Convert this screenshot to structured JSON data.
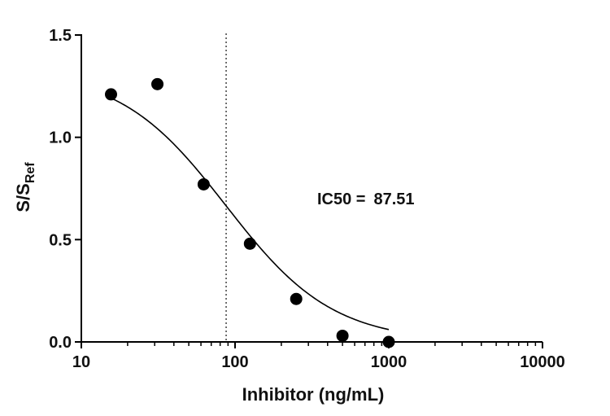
{
  "chart_data": {
    "type": "scatter",
    "xlabel": "Inhibitor (ng/mL)",
    "ylabel_main": "S/S",
    "ylabel_sub": "Ref",
    "x_scale": "log",
    "xlim": [
      10,
      10000
    ],
    "ylim": [
      0,
      1.5
    ],
    "x_ticks": [
      10,
      100,
      1000,
      10000
    ],
    "x_tick_labels": [
      "10",
      "100",
      "1000",
      "10000"
    ],
    "y_ticks": [
      0,
      0.5,
      1.0,
      1.5
    ],
    "y_tick_labels": [
      "0.0",
      "0.5",
      "1.0",
      "1.5"
    ],
    "grid": false,
    "series": [
      {
        "x": [
          15.6,
          31.25,
          62.5,
          125,
          250,
          500,
          1000
        ],
        "y": [
          1.21,
          1.26,
          0.77,
          0.48,
          0.21,
          0.03,
          0.0
        ]
      }
    ],
    "fit_curve": {
      "model": "4PL",
      "top": 1.33,
      "bottom": 0.0,
      "ic50": 87.51,
      "hill_slope": 1.25,
      "x_range": [
        15,
        1000
      ]
    },
    "reference_line": {
      "x": 87.51,
      "style": "dotted"
    },
    "annotation": {
      "label": "IC50 =",
      "value": "87.51"
    },
    "colors": {
      "points": "#000000",
      "curve": "#000000",
      "axes": "#000000",
      "text": "#111111"
    }
  }
}
